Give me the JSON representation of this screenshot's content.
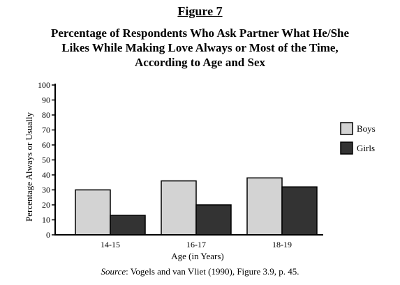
{
  "figure_label": "Figure 7",
  "chart_data": {
    "type": "bar",
    "title_lines": [
      "Percentage of Respondents Who Ask Partner What He/She",
      "Likes While Making Love Always or Most of the Time,",
      "According to Age and Sex"
    ],
    "categories": [
      "14-15",
      "16-17",
      "18-19"
    ],
    "series": [
      {
        "name": "Boys",
        "values": [
          30,
          36,
          38
        ],
        "color": "#d3d3d3"
      },
      {
        "name": "Girls",
        "values": [
          13,
          20,
          32
        ],
        "color": "#333333"
      }
    ],
    "xlabel": "Age (in Years)",
    "ylabel": "Percentage Always or Usually",
    "ylim": [
      0,
      100
    ],
    "yticks": [
      0,
      10,
      20,
      30,
      40,
      50,
      60,
      70,
      80,
      90,
      100
    ],
    "grid": false,
    "legend_position": "right"
  },
  "source": {
    "label": "Source",
    "text": ": Vogels and van Vliet (1990), Figure 3.9, p. 45."
  }
}
